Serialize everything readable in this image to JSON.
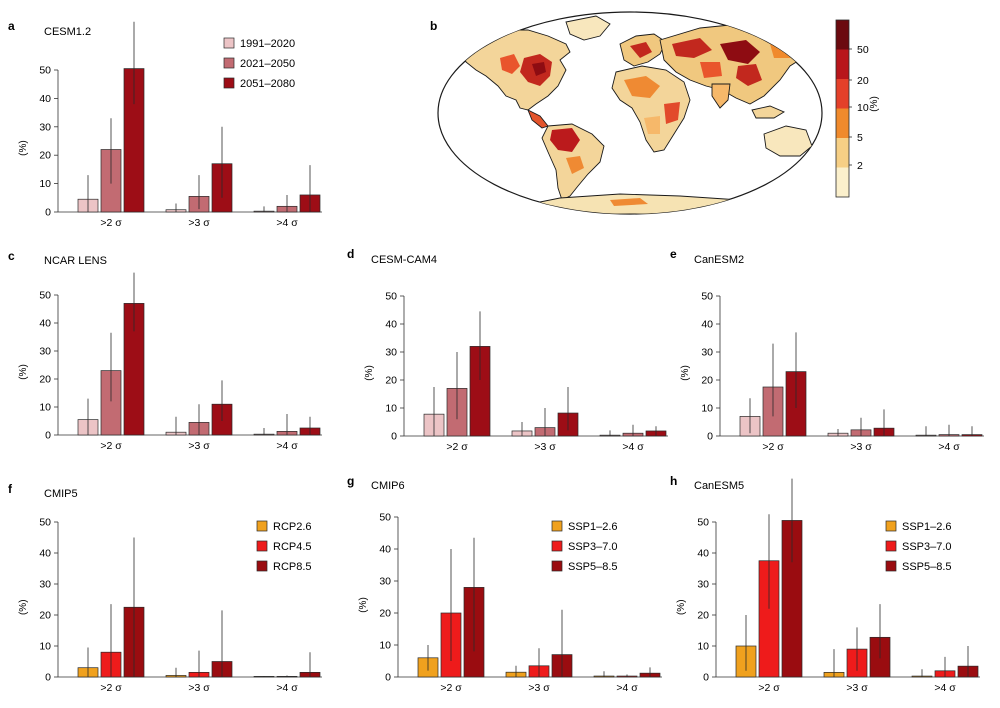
{
  "panel_letters": [
    "a",
    "b",
    "c",
    "d",
    "e",
    "f",
    "g",
    "h"
  ],
  "sigma_labels": [
    ">2 σ",
    ">3 σ",
    ">4 σ"
  ],
  "y_unit": "(%)",
  "map_colorbar": {
    "unit": "(%)",
    "tick_labels": [
      "2",
      "5",
      "10",
      "20",
      "50"
    ],
    "colors": [
      "#fbf0cc",
      "#f6cf85",
      "#f08a2c",
      "#e4402a",
      "#b8161b",
      "#6b0a0f"
    ]
  },
  "palettes": {
    "period": [
      "#ecc4c6",
      "#c26b72",
      "#9d0d16"
    ],
    "scenario": [
      "#f0a11e",
      "#ee1b1b",
      "#9a0c10"
    ]
  },
  "chart_data": [
    {
      "panel": "a",
      "type": "bar",
      "title": "CESM1.2",
      "categories": [
        ">2 σ",
        ">3 σ",
        ">4 σ"
      ],
      "ylabel": "(%)",
      "ylim": [
        0,
        50
      ],
      "yticks": [
        0,
        10,
        20,
        30,
        40,
        50
      ],
      "legend": "top-right",
      "palette": "period",
      "series": [
        {
          "name": "1991–2020",
          "values": [
            4.5,
            0.8,
            0.3
          ],
          "err_low": [
            0,
            0,
            0
          ],
          "err_high": [
            13,
            3,
            2
          ]
        },
        {
          "name": "2021–2050",
          "values": [
            22,
            5.5,
            2
          ],
          "err_low": [
            10,
            1,
            0
          ],
          "err_high": [
            33,
            13,
            6
          ]
        },
        {
          "name": "2051–2080",
          "values": [
            50.5,
            17,
            6
          ],
          "err_low": [
            38,
            5,
            0
          ],
          "err_high": [
            67,
            30,
            16.5
          ]
        }
      ]
    },
    {
      "panel": "c",
      "type": "bar",
      "title": "NCAR LENS",
      "categories": [
        ">2 σ",
        ">3 σ",
        ">4 σ"
      ],
      "ylabel": "(%)",
      "ylim": [
        0,
        50
      ],
      "yticks": [
        0,
        10,
        20,
        30,
        40,
        50
      ],
      "palette": "period",
      "series": [
        {
          "name": "1991–2020",
          "values": [
            5.5,
            1,
            0.3
          ],
          "err_low": [
            0,
            0,
            0
          ],
          "err_high": [
            13,
            6.5,
            2.5
          ]
        },
        {
          "name": "2021–2050",
          "values": [
            23,
            4.5,
            1.3
          ],
          "err_low": [
            12,
            0,
            0
          ],
          "err_high": [
            36.5,
            11,
            7.5
          ]
        },
        {
          "name": "2051–2080",
          "values": [
            47,
            11,
            2.5
          ],
          "err_low": [
            37,
            5,
            0
          ],
          "err_high": [
            58,
            19.5,
            6.5
          ]
        }
      ]
    },
    {
      "panel": "d",
      "type": "bar",
      "title": "CESM-CAM4",
      "categories": [
        ">2 σ",
        ">3 σ",
        ">4 σ"
      ],
      "ylabel": "(%)",
      "ylim": [
        0,
        50
      ],
      "yticks": [
        0,
        10,
        20,
        30,
        40,
        50
      ],
      "palette": "period",
      "series": [
        {
          "name": "1991–2020",
          "values": [
            7.8,
            1.8,
            0.3
          ],
          "err_low": [
            0,
            0,
            0
          ],
          "err_high": [
            17.5,
            5,
            2
          ]
        },
        {
          "name": "2021–2050",
          "values": [
            17,
            3,
            1
          ],
          "err_low": [
            6,
            0,
            0
          ],
          "err_high": [
            30,
            10,
            4
          ]
        },
        {
          "name": "2051–2080",
          "values": [
            32,
            8.2,
            1.8
          ],
          "err_low": [
            20,
            2,
            0
          ],
          "err_high": [
            44.5,
            17.5,
            3.5
          ]
        }
      ]
    },
    {
      "panel": "e",
      "type": "bar",
      "title": "CanESM2",
      "categories": [
        ">2 σ",
        ">3 σ",
        ">4 σ"
      ],
      "ylabel": "(%)",
      "ylim": [
        0,
        50
      ],
      "yticks": [
        0,
        10,
        20,
        30,
        40,
        50
      ],
      "palette": "period",
      "series": [
        {
          "name": "1991–2020",
          "values": [
            7,
            1,
            0.3
          ],
          "err_low": [
            1,
            0,
            0
          ],
          "err_high": [
            13.5,
            2.5,
            3.5
          ]
        },
        {
          "name": "2021–2050",
          "values": [
            17.5,
            2.2,
            0.5
          ],
          "err_low": [
            7,
            0,
            0
          ],
          "err_high": [
            33,
            6.5,
            4
          ]
        },
        {
          "name": "2051–2080",
          "values": [
            23,
            2.8,
            0.5
          ],
          "err_low": [
            10,
            0,
            0
          ],
          "err_high": [
            37,
            9.5,
            3.5
          ]
        }
      ]
    },
    {
      "panel": "f",
      "type": "bar",
      "title": "CMIP5",
      "categories": [
        ">2 σ",
        ">3 σ",
        ">4 σ"
      ],
      "ylabel": "(%)",
      "ylim": [
        0,
        50
      ],
      "yticks": [
        0,
        10,
        20,
        30,
        40,
        50
      ],
      "legend": "top-right",
      "palette": "scenario",
      "series": [
        {
          "name": "RCP2.6",
          "values": [
            3,
            0.5,
            0
          ],
          "err_low": [
            0,
            0,
            0
          ],
          "err_high": [
            9.5,
            3,
            0.3
          ]
        },
        {
          "name": "RCP4.5",
          "values": [
            8,
            1.5,
            0.2
          ],
          "err_low": [
            0,
            0,
            0
          ],
          "err_high": [
            23.5,
            8.5,
            0.5
          ]
        },
        {
          "name": "RCP8.5",
          "values": [
            22.5,
            5,
            1.5
          ],
          "err_low": [
            0,
            0,
            0
          ],
          "err_high": [
            45,
            21.5,
            8
          ]
        }
      ]
    },
    {
      "panel": "g",
      "type": "bar",
      "title": "CMIP6",
      "categories": [
        ">2 σ",
        ">3 σ",
        ">4 σ"
      ],
      "ylabel": "(%)",
      "ylim": [
        0,
        50
      ],
      "yticks": [
        0,
        10,
        20,
        30,
        40,
        50
      ],
      "legend": "top-right",
      "palette": "scenario",
      "series": [
        {
          "name": "SSP1–2.6",
          "values": [
            6,
            1.5,
            0.3
          ],
          "err_low": [
            2,
            0,
            0
          ],
          "err_high": [
            10,
            3.5,
            1.8
          ]
        },
        {
          "name": "SSP3–7.0",
          "values": [
            20,
            3.5,
            0.3
          ],
          "err_low": [
            5,
            0,
            0
          ],
          "err_high": [
            40,
            9,
            0.8
          ]
        },
        {
          "name": "SSP5–8.5",
          "values": [
            28,
            7,
            1.2
          ],
          "err_low": [
            8,
            0,
            0
          ],
          "err_high": [
            43.5,
            21,
            3
          ]
        }
      ]
    },
    {
      "panel": "h",
      "type": "bar",
      "title": "CanESM5",
      "categories": [
        ">2 σ",
        ">3 σ",
        ">4 σ"
      ],
      "ylabel": "(%)",
      "ylim": [
        0,
        50
      ],
      "yticks": [
        0,
        10,
        20,
        30,
        40,
        50
      ],
      "legend": "top-right",
      "palette": "scenario",
      "series": [
        {
          "name": "SSP1–2.6",
          "values": [
            10,
            1.5,
            0.3
          ],
          "err_low": [
            2,
            0,
            0
          ],
          "err_high": [
            20,
            9,
            2.5
          ]
        },
        {
          "name": "SSP3–7.0",
          "values": [
            37.5,
            9,
            2
          ],
          "err_low": [
            22,
            2,
            0
          ],
          "err_high": [
            52.5,
            16,
            6.5
          ]
        },
        {
          "name": "SSP5–8.5",
          "values": [
            50.5,
            12.8,
            3.5
          ],
          "err_low": [
            37,
            6,
            0
          ],
          "err_high": [
            64,
            23.5,
            10
          ]
        }
      ]
    }
  ]
}
